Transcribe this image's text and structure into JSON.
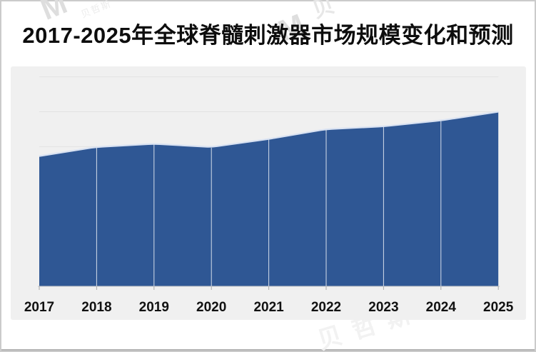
{
  "title": "2017-2025年全球脊髓刺激器市场规模变化和预测",
  "watermarks": {
    "logo_mark": "M",
    "logo_text": "贝哲斯",
    "logo_partial": "贝",
    "bottom_text": "贝哲斯咨询"
  },
  "chart_data": {
    "type": "area",
    "title": "2017-2025年全球脊髓刺激器市场规模变化和预测",
    "categories": [
      "2017",
      "2018",
      "2019",
      "2020",
      "2021",
      "2022",
      "2023",
      "2024",
      "2025"
    ],
    "values": [
      3.73,
      3.99,
      4.08,
      3.99,
      4.22,
      4.5,
      4.58,
      4.75,
      5.0
    ],
    "value_note": "y-axis has no visible labels; values estimated in gridline units (1 unit = one horizontal gridline interval)",
    "xlabel": "",
    "ylabel": "",
    "ylim": [
      0,
      6
    ],
    "grid": "horizontal",
    "legend": "none",
    "series_color": "#2f5794",
    "area_edge_highlight": "#d9e2f2",
    "plot_background": "#f0f0f0",
    "gridline_color": "#e2e2e2",
    "axis_line_color": "#c9c9c9"
  }
}
